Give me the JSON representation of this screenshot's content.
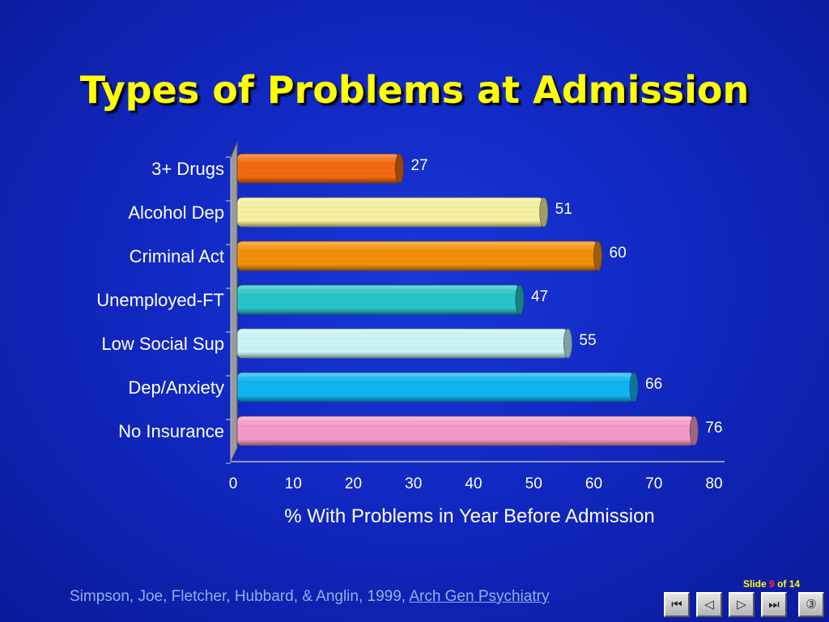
{
  "slide": {
    "title": "Types of Problems at Admission",
    "citation_authors": "Simpson, Joe, Fletcher, Hubbard, & Anglin, 1999,",
    "citation_journal": "Arch Gen Psychiatry",
    "counter_prefix": "Slide",
    "counter_current": "9",
    "counter_suffix": "of 14"
  },
  "nav": {
    "first_icon": "first-slide-icon",
    "prev_icon": "previous-slide-icon",
    "next_icon": "next-slide-icon",
    "last_icon": "last-slide-icon",
    "menu_icon": "slide-menu-icon"
  },
  "chart_data": {
    "type": "bar",
    "orientation": "horizontal",
    "categories": [
      "3+ Drugs",
      "Alcohol Dep",
      "Criminal Act",
      "Unemployed-FT",
      "Low Social Sup",
      "Dep/Anxiety",
      "No Insurance"
    ],
    "values": [
      27,
      51,
      60,
      47,
      55,
      66,
      76
    ],
    "data_labels": [
      "27",
      "51",
      "60",
      "47",
      "55",
      "66",
      "76"
    ],
    "bar_colors": [
      "#f26a10",
      "#f4f0a0",
      "#f2900a",
      "#28c4c8",
      "#c8f4f4",
      "#12b4f0",
      "#f49ac8"
    ],
    "xlabel": "% With Problems in Year Before Admission",
    "ylabel": "",
    "xlim": [
      0,
      80
    ],
    "x_ticks": [
      "0",
      "10",
      "20",
      "30",
      "40",
      "50",
      "60",
      "70",
      "80"
    ],
    "grid": false,
    "legend": "none",
    "style": "3d-cylinder"
  }
}
